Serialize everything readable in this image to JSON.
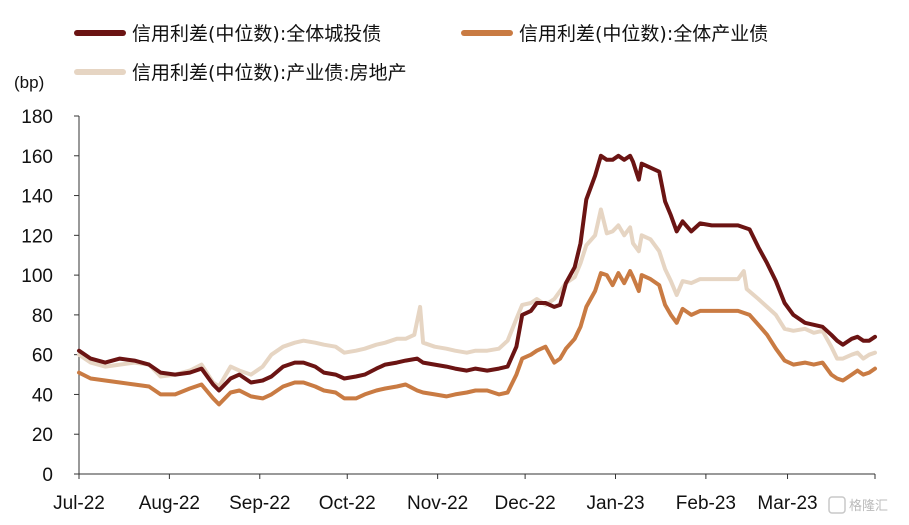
{
  "chart_data": {
    "type": "line",
    "ylabel": "(bp)",
    "ylim": [
      0,
      180
    ],
    "yticks": [
      0,
      20,
      40,
      60,
      80,
      100,
      120,
      140,
      160,
      180
    ],
    "xlim": [
      "2022-07-01",
      "2023-03-31"
    ],
    "x_ticks": [
      {
        "label": "Jul-22",
        "date": "2022-07-01"
      },
      {
        "label": "Aug-22",
        "date": "2022-08-01"
      },
      {
        "label": "Sep-22",
        "date": "2022-09-01"
      },
      {
        "label": "Oct-22",
        "date": "2022-10-01"
      },
      {
        "label": "Nov-22",
        "date": "2022-11-01"
      },
      {
        "label": "Dec-22",
        "date": "2022-12-01"
      },
      {
        "label": "Jan-23",
        "date": "2023-01-01"
      },
      {
        "label": "Feb-23",
        "date": "2023-02-01"
      },
      {
        "label": "Mar-23",
        "date": "2023-03-01"
      }
    ],
    "legend_position": "top-left",
    "grid": false,
    "series": [
      {
        "name": "信用利差(中位数):全体城投债",
        "color": "#6b1413",
        "points": [
          [
            "2022-07-01",
            62
          ],
          [
            "2022-07-05",
            58
          ],
          [
            "2022-07-10",
            56
          ],
          [
            "2022-07-15",
            58
          ],
          [
            "2022-07-20",
            57
          ],
          [
            "2022-07-25",
            55
          ],
          [
            "2022-07-29",
            51
          ],
          [
            "2022-08-03",
            50
          ],
          [
            "2022-08-08",
            51
          ],
          [
            "2022-08-12",
            53
          ],
          [
            "2022-08-16",
            45
          ],
          [
            "2022-08-18",
            42
          ],
          [
            "2022-08-22",
            48
          ],
          [
            "2022-08-25",
            50
          ],
          [
            "2022-08-29",
            46
          ],
          [
            "2022-09-02",
            47
          ],
          [
            "2022-09-05",
            49
          ],
          [
            "2022-09-09",
            54
          ],
          [
            "2022-09-13",
            56
          ],
          [
            "2022-09-16",
            56
          ],
          [
            "2022-09-20",
            54
          ],
          [
            "2022-09-23",
            51
          ],
          [
            "2022-09-27",
            50
          ],
          [
            "2022-09-30",
            48
          ],
          [
            "2022-10-04",
            49
          ],
          [
            "2022-10-07",
            50
          ],
          [
            "2022-10-11",
            53
          ],
          [
            "2022-10-14",
            55
          ],
          [
            "2022-10-18",
            56
          ],
          [
            "2022-10-21",
            57
          ],
          [
            "2022-10-25",
            58
          ],
          [
            "2022-10-27",
            56
          ],
          [
            "2022-10-31",
            55
          ],
          [
            "2022-11-04",
            54
          ],
          [
            "2022-11-07",
            53
          ],
          [
            "2022-11-11",
            52
          ],
          [
            "2022-11-14",
            53
          ],
          [
            "2022-11-18",
            52
          ],
          [
            "2022-11-22",
            53
          ],
          [
            "2022-11-25",
            54
          ],
          [
            "2022-11-28",
            64
          ],
          [
            "2022-11-30",
            80
          ],
          [
            "2022-12-03",
            82
          ],
          [
            "2022-12-05",
            86
          ],
          [
            "2022-12-08",
            86
          ],
          [
            "2022-12-11",
            84
          ],
          [
            "2022-12-13",
            85
          ],
          [
            "2022-12-15",
            96
          ],
          [
            "2022-12-18",
            104
          ],
          [
            "2022-12-20",
            116
          ],
          [
            "2022-12-22",
            138
          ],
          [
            "2022-12-25",
            150
          ],
          [
            "2022-12-27",
            160
          ],
          [
            "2022-12-29",
            158
          ],
          [
            "2022-12-31",
            158
          ],
          [
            "2023-01-02",
            160
          ],
          [
            "2023-01-04",
            158
          ],
          [
            "2023-01-06",
            160
          ],
          [
            "2023-01-07",
            157
          ],
          [
            "2023-01-09",
            148
          ],
          [
            "2023-01-10",
            156
          ],
          [
            "2023-01-13",
            154
          ],
          [
            "2023-01-16",
            152
          ],
          [
            "2023-01-18",
            137
          ],
          [
            "2023-01-20",
            130
          ],
          [
            "2023-01-22",
            122
          ],
          [
            "2023-01-24",
            127
          ],
          [
            "2023-01-27",
            122
          ],
          [
            "2023-01-30",
            126
          ],
          [
            "2023-02-03",
            125
          ],
          [
            "2023-02-08",
            125
          ],
          [
            "2023-02-12",
            125
          ],
          [
            "2023-02-16",
            123
          ],
          [
            "2023-02-19",
            114
          ],
          [
            "2023-02-22",
            106
          ],
          [
            "2023-02-25",
            97
          ],
          [
            "2023-02-28",
            86
          ],
          [
            "2023-03-03",
            80
          ],
          [
            "2023-03-07",
            76
          ],
          [
            "2023-03-10",
            75
          ],
          [
            "2023-03-13",
            74
          ],
          [
            "2023-03-16",
            70
          ],
          [
            "2023-03-18",
            67
          ],
          [
            "2023-03-20",
            65
          ],
          [
            "2023-03-23",
            68
          ],
          [
            "2023-03-25",
            69
          ],
          [
            "2023-03-27",
            67
          ],
          [
            "2023-03-29",
            67
          ],
          [
            "2023-03-31",
            69
          ]
        ]
      },
      {
        "name": "信用利差(中位数):全体产业债",
        "color": "#c97b43",
        "points": [
          [
            "2022-07-01",
            51
          ],
          [
            "2022-07-05",
            48
          ],
          [
            "2022-07-10",
            47
          ],
          [
            "2022-07-15",
            46
          ],
          [
            "2022-07-20",
            45
          ],
          [
            "2022-07-25",
            44
          ],
          [
            "2022-07-29",
            40
          ],
          [
            "2022-08-03",
            40
          ],
          [
            "2022-08-08",
            43
          ],
          [
            "2022-08-12",
            45
          ],
          [
            "2022-08-16",
            38
          ],
          [
            "2022-08-18",
            35
          ],
          [
            "2022-08-22",
            41
          ],
          [
            "2022-08-25",
            42
          ],
          [
            "2022-08-29",
            39
          ],
          [
            "2022-09-02",
            38
          ],
          [
            "2022-09-05",
            40
          ],
          [
            "2022-09-09",
            44
          ],
          [
            "2022-09-13",
            46
          ],
          [
            "2022-09-16",
            46
          ],
          [
            "2022-09-20",
            44
          ],
          [
            "2022-09-23",
            42
          ],
          [
            "2022-09-27",
            41
          ],
          [
            "2022-09-30",
            38
          ],
          [
            "2022-10-04",
            38
          ],
          [
            "2022-10-07",
            40
          ],
          [
            "2022-10-11",
            42
          ],
          [
            "2022-10-14",
            43
          ],
          [
            "2022-10-18",
            44
          ],
          [
            "2022-10-21",
            45
          ],
          [
            "2022-10-25",
            42
          ],
          [
            "2022-10-27",
            41
          ],
          [
            "2022-10-31",
            40
          ],
          [
            "2022-11-04",
            39
          ],
          [
            "2022-11-07",
            40
          ],
          [
            "2022-11-11",
            41
          ],
          [
            "2022-11-14",
            42
          ],
          [
            "2022-11-18",
            42
          ],
          [
            "2022-11-22",
            40
          ],
          [
            "2022-11-25",
            41
          ],
          [
            "2022-11-28",
            50
          ],
          [
            "2022-11-30",
            58
          ],
          [
            "2022-12-03",
            60
          ],
          [
            "2022-12-05",
            62
          ],
          [
            "2022-12-08",
            64
          ],
          [
            "2022-12-11",
            56
          ],
          [
            "2022-12-13",
            58
          ],
          [
            "2022-12-15",
            63
          ],
          [
            "2022-12-18",
            68
          ],
          [
            "2022-12-20",
            74
          ],
          [
            "2022-12-22",
            84
          ],
          [
            "2022-12-25",
            92
          ],
          [
            "2022-12-27",
            101
          ],
          [
            "2022-12-29",
            100
          ],
          [
            "2022-12-31",
            95
          ],
          [
            "2023-01-02",
            101
          ],
          [
            "2023-01-04",
            96
          ],
          [
            "2023-01-06",
            102
          ],
          [
            "2023-01-07",
            99
          ],
          [
            "2023-01-09",
            92
          ],
          [
            "2023-01-10",
            100
          ],
          [
            "2023-01-13",
            98
          ],
          [
            "2023-01-16",
            95
          ],
          [
            "2023-01-18",
            85
          ],
          [
            "2023-01-20",
            80
          ],
          [
            "2023-01-22",
            76
          ],
          [
            "2023-01-24",
            83
          ],
          [
            "2023-01-27",
            80
          ],
          [
            "2023-01-30",
            82
          ],
          [
            "2023-02-03",
            82
          ],
          [
            "2023-02-08",
            82
          ],
          [
            "2023-02-12",
            82
          ],
          [
            "2023-02-16",
            80
          ],
          [
            "2023-02-19",
            75
          ],
          [
            "2023-02-22",
            70
          ],
          [
            "2023-02-25",
            63
          ],
          [
            "2023-02-28",
            57
          ],
          [
            "2023-03-03",
            55
          ],
          [
            "2023-03-07",
            56
          ],
          [
            "2023-03-10",
            55
          ],
          [
            "2023-03-13",
            56
          ],
          [
            "2023-03-16",
            50
          ],
          [
            "2023-03-18",
            48
          ],
          [
            "2023-03-20",
            47
          ],
          [
            "2023-03-23",
            50
          ],
          [
            "2023-03-25",
            52
          ],
          [
            "2023-03-27",
            50
          ],
          [
            "2023-03-29",
            51
          ],
          [
            "2023-03-31",
            53
          ]
        ]
      },
      {
        "name": "信用利差(中位数):产业债:房地产",
        "color": "#e6d5c3",
        "points": [
          [
            "2022-07-01",
            60
          ],
          [
            "2022-07-05",
            56
          ],
          [
            "2022-07-10",
            54
          ],
          [
            "2022-07-15",
            55
          ],
          [
            "2022-07-20",
            56
          ],
          [
            "2022-07-25",
            55
          ],
          [
            "2022-07-29",
            49
          ],
          [
            "2022-08-03",
            50
          ],
          [
            "2022-08-08",
            52
          ],
          [
            "2022-08-12",
            55
          ],
          [
            "2022-08-16",
            46
          ],
          [
            "2022-08-18",
            44
          ],
          [
            "2022-08-22",
            54
          ],
          [
            "2022-08-25",
            52
          ],
          [
            "2022-08-29",
            50
          ],
          [
            "2022-09-02",
            54
          ],
          [
            "2022-09-05",
            60
          ],
          [
            "2022-09-09",
            64
          ],
          [
            "2022-09-13",
            66
          ],
          [
            "2022-09-16",
            67
          ],
          [
            "2022-09-20",
            66
          ],
          [
            "2022-09-23",
            65
          ],
          [
            "2022-09-27",
            64
          ],
          [
            "2022-09-30",
            61
          ],
          [
            "2022-10-04",
            62
          ],
          [
            "2022-10-07",
            63
          ],
          [
            "2022-10-11",
            65
          ],
          [
            "2022-10-14",
            66
          ],
          [
            "2022-10-18",
            68
          ],
          [
            "2022-10-21",
            68
          ],
          [
            "2022-10-24",
            70
          ],
          [
            "2022-10-26",
            84
          ],
          [
            "2022-10-27",
            66
          ],
          [
            "2022-10-31",
            64
          ],
          [
            "2022-11-04",
            63
          ],
          [
            "2022-11-07",
            62
          ],
          [
            "2022-11-11",
            61
          ],
          [
            "2022-11-14",
            62
          ],
          [
            "2022-11-18",
            62
          ],
          [
            "2022-11-22",
            63
          ],
          [
            "2022-11-25",
            67
          ],
          [
            "2022-11-28",
            78
          ],
          [
            "2022-11-30",
            85
          ],
          [
            "2022-12-03",
            86
          ],
          [
            "2022-12-05",
            88
          ],
          [
            "2022-12-08",
            85
          ],
          [
            "2022-12-11",
            88
          ],
          [
            "2022-12-13",
            92
          ],
          [
            "2022-12-15",
            96
          ],
          [
            "2022-12-18",
            99
          ],
          [
            "2022-12-20",
            106
          ],
          [
            "2022-12-22",
            115
          ],
          [
            "2022-12-25",
            120
          ],
          [
            "2022-12-27",
            133
          ],
          [
            "2022-12-29",
            121
          ],
          [
            "2022-12-31",
            122
          ],
          [
            "2023-01-02",
            125
          ],
          [
            "2023-01-04",
            120
          ],
          [
            "2023-01-06",
            124
          ],
          [
            "2023-01-07",
            116
          ],
          [
            "2023-01-09",
            112
          ],
          [
            "2023-01-10",
            120
          ],
          [
            "2023-01-13",
            118
          ],
          [
            "2023-01-16",
            112
          ],
          [
            "2023-01-18",
            103
          ],
          [
            "2023-01-20",
            97
          ],
          [
            "2023-01-22",
            90
          ],
          [
            "2023-01-24",
            97
          ],
          [
            "2023-01-27",
            96
          ],
          [
            "2023-01-30",
            98
          ],
          [
            "2023-02-03",
            98
          ],
          [
            "2023-02-08",
            98
          ],
          [
            "2023-02-12",
            98
          ],
          [
            "2023-02-14",
            102
          ],
          [
            "2023-02-15",
            93
          ],
          [
            "2023-02-19",
            88
          ],
          [
            "2023-02-22",
            84
          ],
          [
            "2023-02-25",
            80
          ],
          [
            "2023-02-28",
            73
          ],
          [
            "2023-03-03",
            72
          ],
          [
            "2023-03-07",
            73
          ],
          [
            "2023-03-10",
            71
          ],
          [
            "2023-03-13",
            72
          ],
          [
            "2023-03-16",
            64
          ],
          [
            "2023-03-18",
            58
          ],
          [
            "2023-03-20",
            58
          ],
          [
            "2023-03-23",
            60
          ],
          [
            "2023-03-25",
            61
          ],
          [
            "2023-03-27",
            58
          ],
          [
            "2023-03-29",
            60
          ],
          [
            "2023-03-31",
            61
          ]
        ]
      }
    ]
  },
  "watermark": "格隆汇"
}
